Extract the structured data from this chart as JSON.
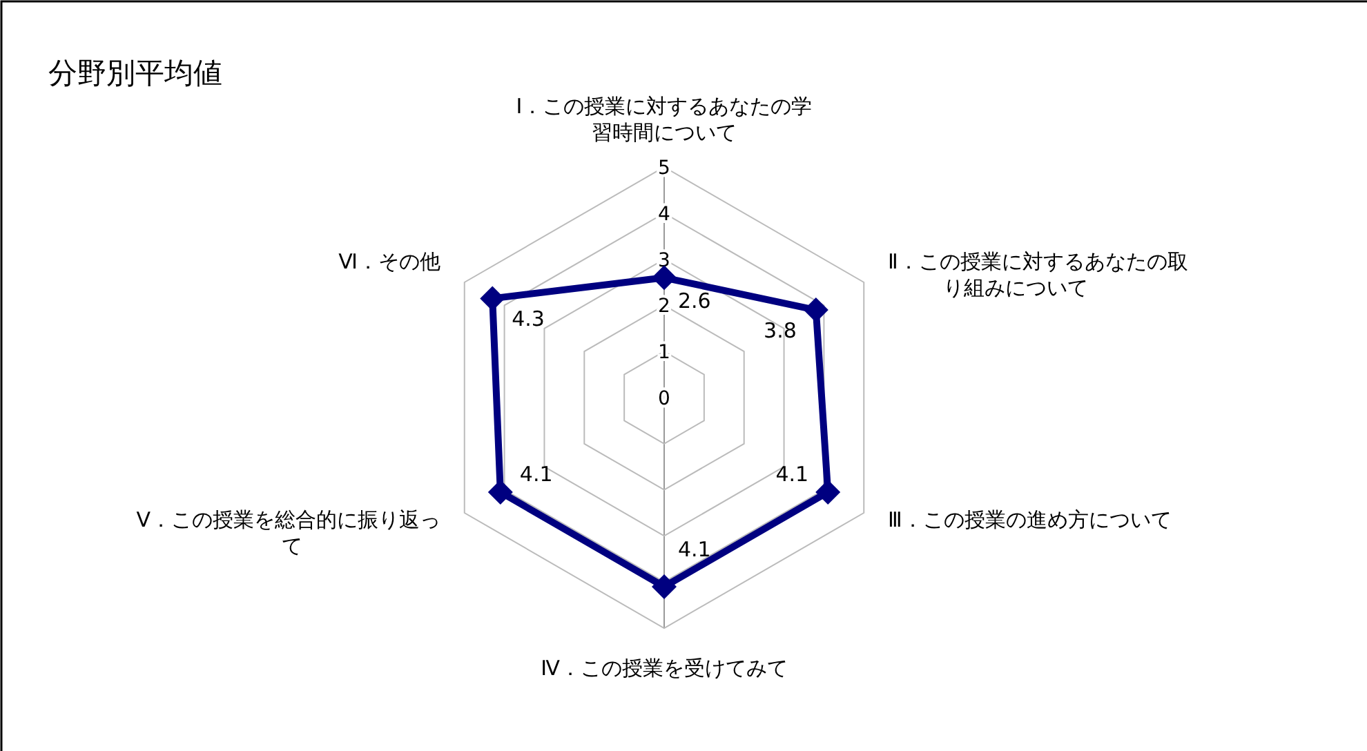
{
  "chart_data": {
    "type": "radar",
    "title": "分野別平均値",
    "categories": [
      "Ⅰ．この授業に対するあなたの学習時間について",
      "Ⅱ．この授業に対するあなたの取り組みについて",
      "Ⅲ．この授業の進め方について",
      "Ⅳ．この授業を受けてみて",
      "Ⅴ．この授業を総合的に振り返って",
      "Ⅵ．その他"
    ],
    "series": [
      {
        "color": "#000080",
        "values": [
          2.6,
          3.8,
          4.1,
          4.1,
          4.1,
          4.3
        ]
      }
    ],
    "ylim": [
      0,
      5
    ],
    "yticks": [
      0,
      1,
      2,
      3,
      4,
      5
    ],
    "marker": "diamond",
    "data_labels": true,
    "grid": true
  }
}
